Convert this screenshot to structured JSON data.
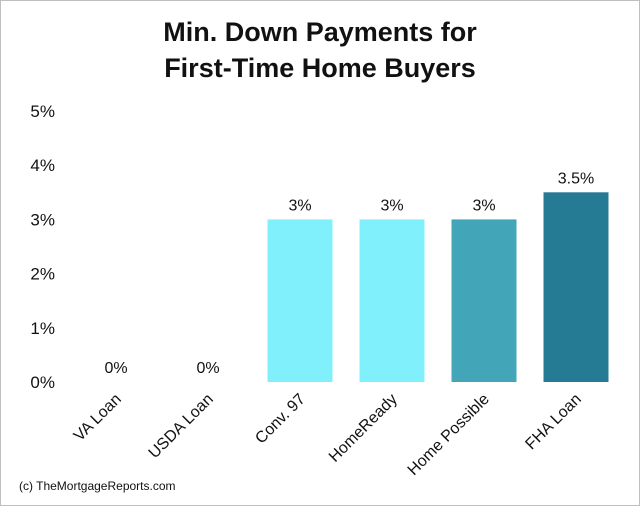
{
  "chart_data": {
    "type": "bar",
    "title_lines": [
      "Min. Down Payments for",
      "First-Time Home Buyers"
    ],
    "categories": [
      "VA Loan",
      "USDA Loan",
      "Conv. 97",
      "HomeReady",
      "Home Possible",
      "FHA Loan"
    ],
    "values": [
      0,
      0,
      3,
      3,
      3,
      3.5
    ],
    "data_labels": [
      "0%",
      "0%",
      "3%",
      "3%",
      "3%",
      "3.5%"
    ],
    "colors": [
      "#7ff0fc",
      "#7ff0fc",
      "#7ff0fc",
      "#7ff0fc",
      "#42a6b8",
      "#257b93"
    ],
    "ylim": [
      0,
      5
    ],
    "yticks": [
      0,
      1,
      2,
      3,
      4,
      5
    ],
    "ytick_labels": [
      "0%",
      "1%",
      "2%",
      "3%",
      "4%",
      "5%"
    ],
    "grid": false,
    "legend": "none"
  },
  "credit": "(c) TheMortgageReports.com"
}
